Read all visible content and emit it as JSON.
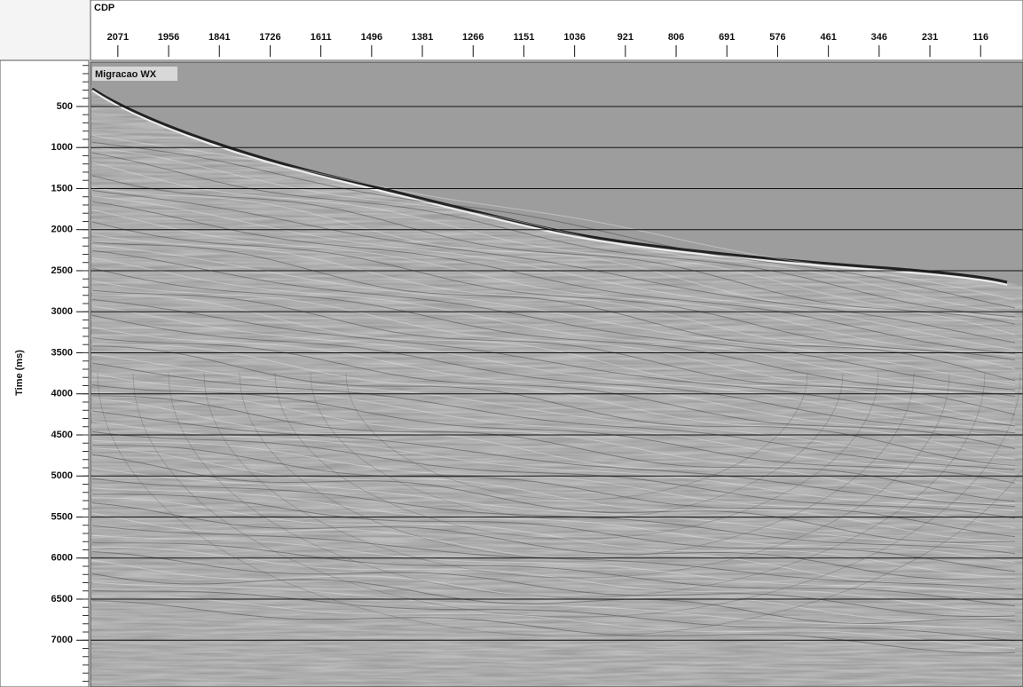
{
  "chart_data": {
    "type": "seismic-section",
    "title": "Migracao WX",
    "x_label": "CDP",
    "y_label": "Time (ms)",
    "xlim": [
      2133,
      20
    ],
    "xticks": [
      2071,
      1956,
      1841,
      1726,
      1611,
      1496,
      1381,
      1266,
      1151,
      1036,
      921,
      806,
      691,
      576,
      461,
      346,
      231,
      116
    ],
    "ylim": [
      -40,
      7570
    ],
    "yticks": [
      500,
      1000,
      1500,
      2000,
      2500,
      3000,
      3500,
      4000,
      4500,
      5000,
      5500,
      6000,
      6500,
      7000
    ],
    "grid": true
  }
}
